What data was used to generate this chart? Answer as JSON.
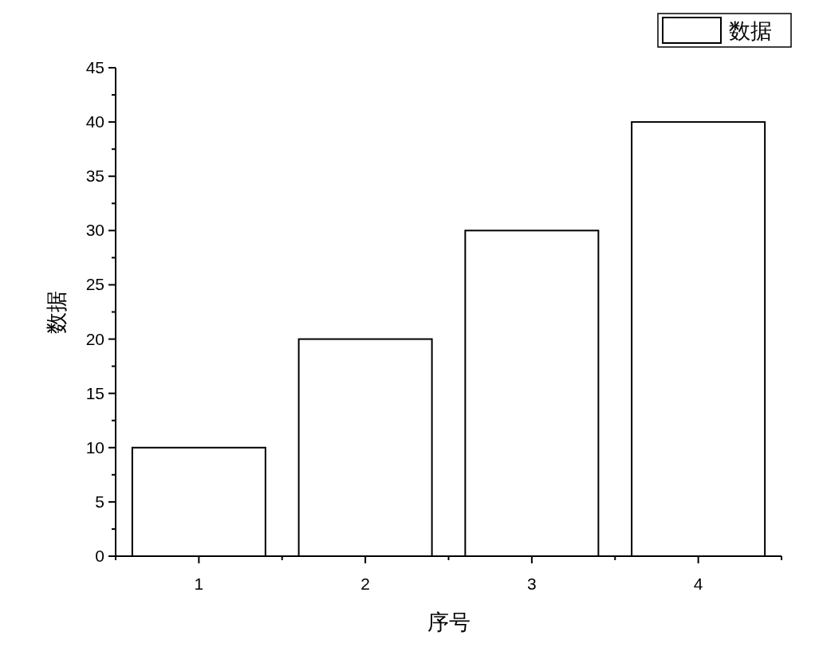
{
  "chart_data": {
    "type": "bar",
    "xlabel": "序号",
    "ylabel": "数据",
    "categories": [
      "1",
      "2",
      "3",
      "4"
    ],
    "series": [
      {
        "name": "数据",
        "color": "#ffffff",
        "values": [
          10,
          20,
          30,
          40
        ]
      }
    ],
    "ylim": [
      0,
      45
    ],
    "yticks": [
      0,
      5,
      10,
      15,
      20,
      25,
      30,
      35,
      40,
      45
    ],
    "grid": false,
    "legend": "top right"
  }
}
